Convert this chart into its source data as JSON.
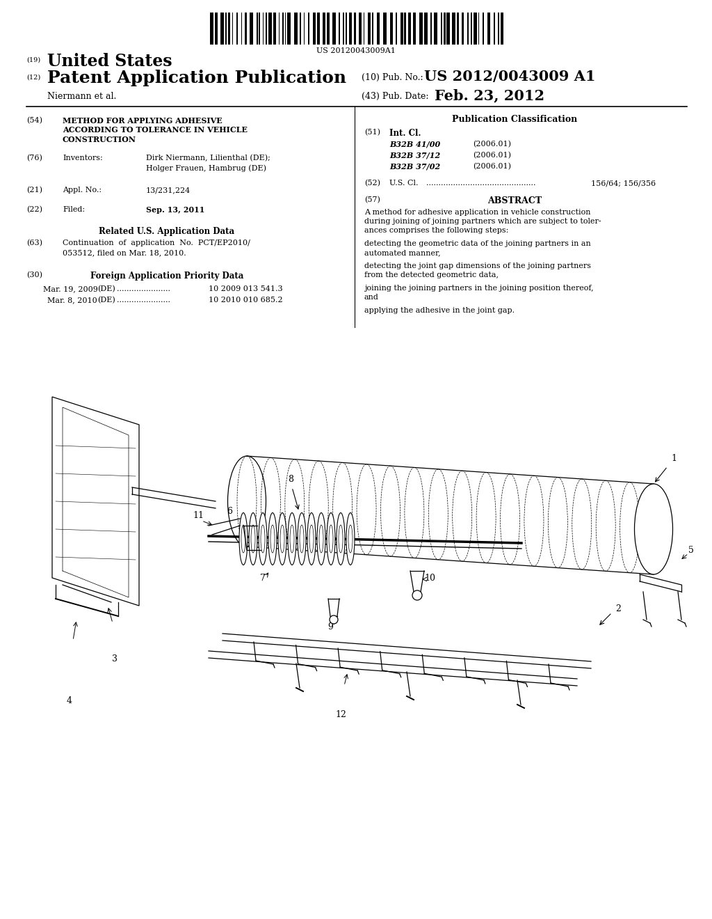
{
  "background_color": "#ffffff",
  "barcode_text": "US 20120043009A1",
  "header_19": "(19)",
  "header_19_text": "United States",
  "header_12": "(12)",
  "header_12_text": "Patent Application Publication",
  "header_10_label": "(10) Pub. No.:",
  "header_10_value": "US 2012/0043009 A1",
  "assignee_name": "Niermann et al.",
  "header_43_label": "(43) Pub. Date:",
  "header_43_value": "Feb. 23, 2012",
  "item_54_label": "(54)",
  "item_54_lines": [
    "METHOD FOR APPLYING ADHESIVE",
    "ACCORDING TO TOLERANCE IN VEHICLE",
    "CONSTRUCTION"
  ],
  "item_76_label": "(76)",
  "item_76_field": "Inventors:",
  "item_76_line1": "Dirk Niermann, Lilienthal (DE);",
  "item_76_line2": "Holger Frauen, Hambrug (DE)",
  "item_21_label": "(21)",
  "item_21_field": "Appl. No.:",
  "item_21_text": "13/231,224",
  "item_22_label": "(22)",
  "item_22_field": "Filed:",
  "item_22_text": "Sep. 13, 2011",
  "related_header": "Related U.S. Application Data",
  "item_63_label": "(63)",
  "item_63_line1": "Continuation  of  application  No.  PCT/EP2010/",
  "item_63_line2": "053512, filed on Mar. 18, 2010.",
  "foreign_header": "Foreign Application Priority Data",
  "item_30_label": "(30)",
  "priority_line1_date": "Mar. 19, 2009",
  "priority_line1_country": "(DE)",
  "priority_line1_dots": "......................",
  "priority_line1_num": "10 2009 013 541.3",
  "priority_line2_date": "Mar. 8, 2010",
  "priority_line2_country": "(DE)",
  "priority_line2_dots": "......................",
  "priority_line2_num": "10 2010 010 685.2",
  "pub_class_header": "Publication Classification",
  "item_51_label": "(51)",
  "item_51_field": "Int. Cl.",
  "item_51_classes": [
    [
      "B32B 41/00",
      "(2006.01)"
    ],
    [
      "B32B 37/12",
      "(2006.01)"
    ],
    [
      "B32B 37/02",
      "(2006.01)"
    ]
  ],
  "item_52_label": "(52)",
  "item_52_field": "U.S. Cl.",
  "item_52_dots": ".............................................",
  "item_52_value": "156/64; 156/356",
  "item_57_label": "(57)",
  "abstract_header": "ABSTRACT",
  "abstract_paragraphs": [
    "A method for adhesive application in vehicle construction during joining of joining partners which are subject to toler-ances comprises the following steps:",
    "detecting the geometric data of the joining partners in an automated manner,",
    "detecting the joint gap dimensions of the joining partners from the detected geometric data,",
    "joining the joining partners in the joining position thereof, and",
    "applying the adhesive in the joint gap."
  ]
}
